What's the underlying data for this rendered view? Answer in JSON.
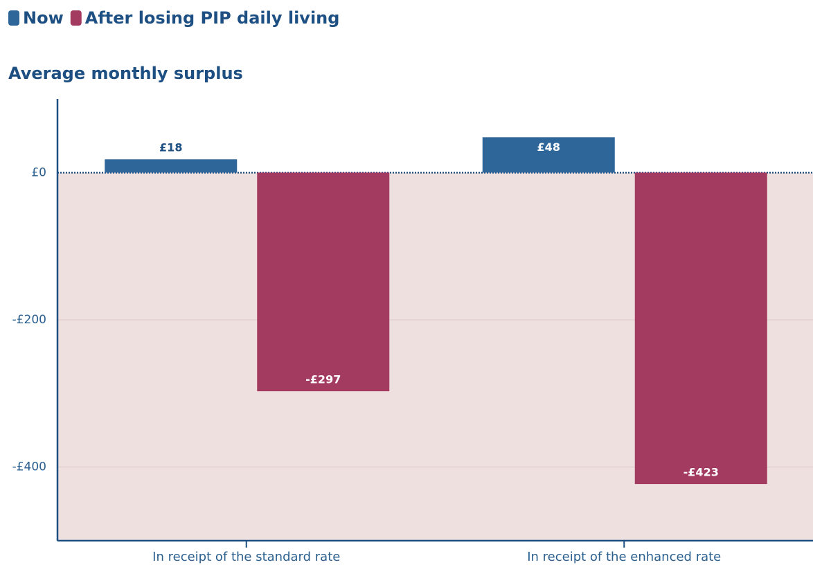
{
  "chart_data": {
    "type": "bar",
    "title": "Average monthly surplus",
    "categories": [
      "In receipt of the standard rate",
      "In receipt of the enhanced rate"
    ],
    "series": [
      {
        "name": "Now",
        "color": "#2e6699",
        "values": [
          18,
          48
        ],
        "value_labels": [
          "£18",
          "£48"
        ]
      },
      {
        "name": "After losing PIP daily living",
        "color": "#a33a60",
        "values": [
          -297,
          -423
        ],
        "value_labels": [
          "-£297",
          "-£423"
        ]
      }
    ],
    "ylim": [
      -500,
      100
    ],
    "yticks": [
      {
        "value": 0,
        "label": "£0"
      },
      {
        "value": -200,
        "label": "-£200"
      },
      {
        "value": -400,
        "label": "-£400"
      }
    ],
    "grid": true
  }
}
